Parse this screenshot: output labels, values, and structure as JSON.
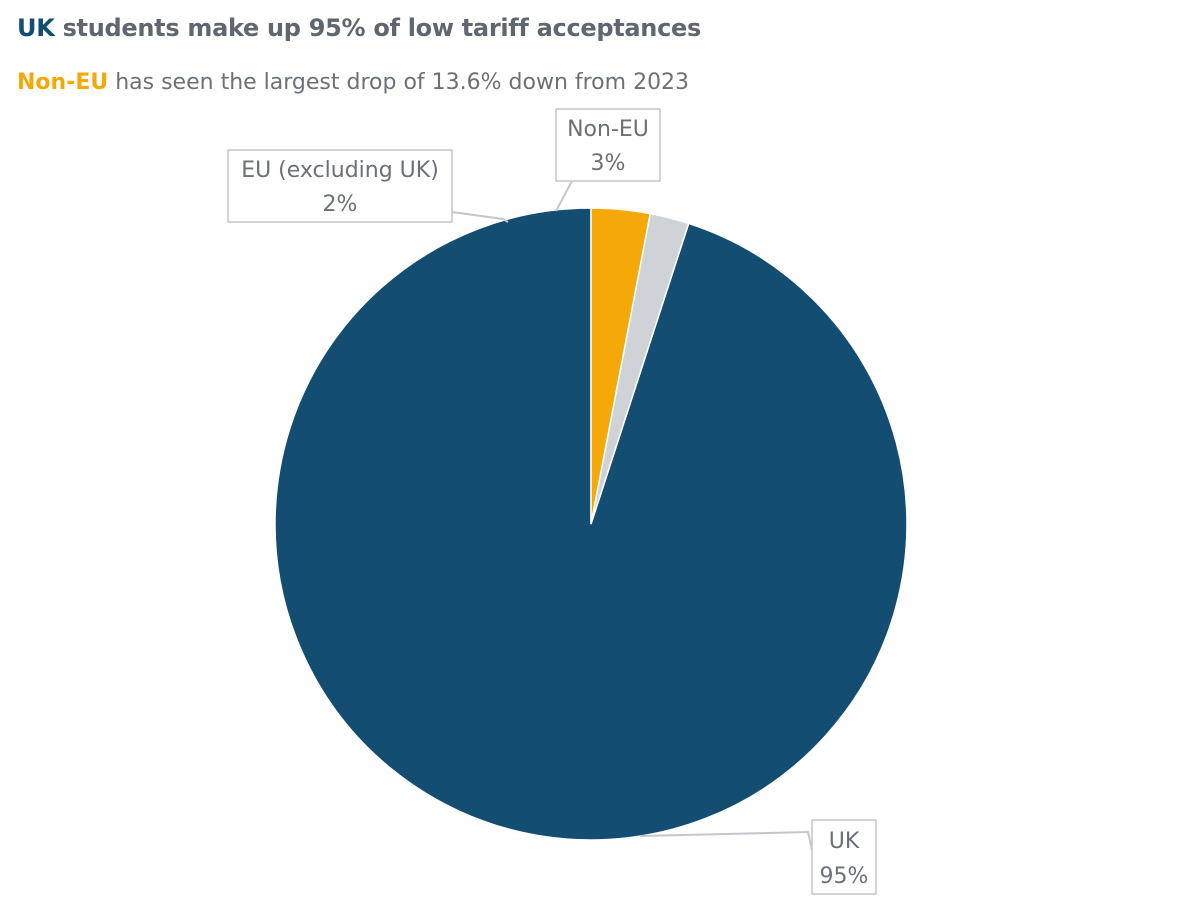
{
  "title": {
    "highlight": "UK",
    "rest": "students make up 95% of low tariff acceptances"
  },
  "subtitle": {
    "highlight": "Non-EU",
    "rest": "has seen the largest drop of 13.6% down from 2023"
  },
  "colors": {
    "uk": "#134d71",
    "eu": "#cfd2d6",
    "non_eu": "#f4a909",
    "title_text": "#5f6670",
    "label_text": "#6b7079",
    "label_border": "#c4c6c9"
  },
  "chart_data": {
    "type": "pie",
    "start_angle_deg": 0,
    "direction": "counterclockwise",
    "slices": [
      {
        "name": "UK",
        "value": 95,
        "label": "95%",
        "color": "#134d71"
      },
      {
        "name": "EU (excluding UK)",
        "value": 2,
        "label": "2%",
        "color": "#cfd2d6"
      },
      {
        "name": "Non-EU",
        "value": 3,
        "label": "3%",
        "color": "#f4a909"
      }
    ]
  }
}
